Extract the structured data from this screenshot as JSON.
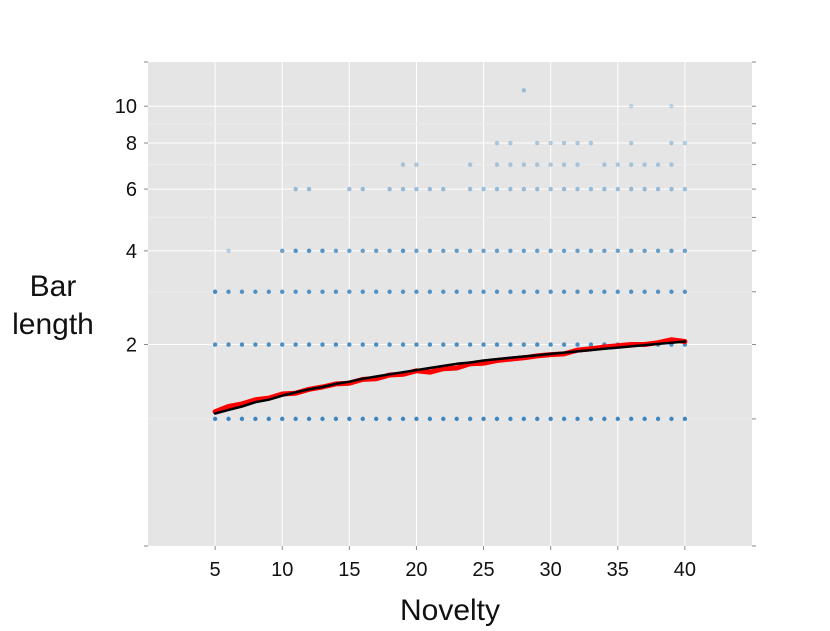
{
  "chart_data": {
    "type": "scatter",
    "xlabel": "Novelty",
    "ylabel_lines": [
      "Bar",
      "length"
    ],
    "xlim": [
      0,
      45
    ],
    "ylim": [
      0,
      13
    ],
    "x_ticks": [
      5,
      10,
      15,
      20,
      25,
      30,
      35,
      40
    ],
    "y_ticks": [
      2,
      4,
      6,
      8,
      10
    ],
    "y_scale": "log1p",
    "grid": true,
    "point_color": "#2b7bba",
    "line_colors": {
      "fit": "#000000",
      "observed": "#ff0000"
    },
    "point_rows": [
      {
        "y": 1,
        "from": 5,
        "to": 40,
        "opacity": 0.9
      },
      {
        "y": 2,
        "from": 5,
        "to": 40,
        "opacity": 0.85
      },
      {
        "y": 3,
        "from": 5,
        "to": 40,
        "opacity": 0.8
      },
      {
        "y": 3,
        "x": [
          5
        ],
        "opacity": 0.3
      },
      {
        "y": 4,
        "from": 10,
        "to": 40,
        "opacity": 0.7
      },
      {
        "y": 4,
        "x": [
          6,
          11,
          12,
          13,
          19
        ],
        "opacity": 0.3
      },
      {
        "y": 6,
        "x": [
          11,
          12,
          15,
          16,
          18,
          19,
          20,
          21,
          22,
          24,
          25,
          26,
          27,
          28,
          29,
          30,
          31,
          32,
          33,
          34,
          35,
          36,
          37,
          38,
          39,
          40
        ],
        "opacity": 0.45
      },
      {
        "y": 7,
        "x": [
          19,
          20,
          24,
          26,
          27,
          28,
          29,
          30,
          31,
          32,
          34,
          35,
          36,
          37,
          38,
          39
        ],
        "opacity": 0.35
      },
      {
        "y": 8,
        "x": [
          26,
          27,
          29,
          30,
          31,
          32,
          33,
          36,
          39,
          40
        ],
        "opacity": 0.35
      },
      {
        "y": 10,
        "x": [
          36,
          39
        ],
        "opacity": 0.25
      },
      {
        "y": 11,
        "x": [
          28
        ],
        "opacity": 0.4
      }
    ],
    "series": [
      {
        "x": [
          5,
          6,
          7,
          8,
          9,
          10,
          11,
          12,
          13,
          14,
          15,
          16,
          17,
          18,
          19,
          20,
          21,
          22,
          23,
          24,
          25,
          26,
          27,
          28,
          29,
          30,
          31,
          32,
          33,
          34,
          35,
          36,
          37,
          38,
          39,
          40
        ],
        "y": [
          1.08,
          1.14,
          1.17,
          1.22,
          1.24,
          1.29,
          1.3,
          1.35,
          1.38,
          1.42,
          1.43,
          1.48,
          1.49,
          1.54,
          1.55,
          1.6,
          1.58,
          1.63,
          1.64,
          1.7,
          1.71,
          1.75,
          1.77,
          1.79,
          1.82,
          1.84,
          1.85,
          1.91,
          1.93,
          1.96,
          1.98,
          2.0,
          2.0,
          2.03,
          2.08,
          2.05
        ]
      },
      {
        "x": [
          5,
          6,
          7,
          8,
          9,
          10,
          11,
          12,
          13,
          14,
          15,
          16,
          17,
          18,
          19,
          20,
          21,
          22,
          23,
          24,
          25,
          26,
          27,
          28,
          29,
          30,
          31,
          32,
          33,
          34,
          35,
          36,
          37,
          38,
          39,
          40
        ],
        "y": [
          1.06,
          1.1,
          1.14,
          1.19,
          1.22,
          1.27,
          1.31,
          1.35,
          1.38,
          1.42,
          1.45,
          1.49,
          1.52,
          1.55,
          1.58,
          1.61,
          1.64,
          1.67,
          1.7,
          1.72,
          1.75,
          1.77,
          1.79,
          1.81,
          1.83,
          1.85,
          1.87,
          1.89,
          1.91,
          1.93,
          1.95,
          1.97,
          1.99,
          2.01,
          2.03,
          2.05
        ]
      }
    ]
  }
}
